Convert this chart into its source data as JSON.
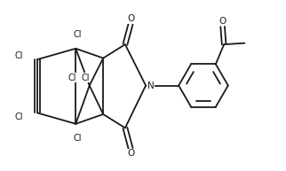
{
  "bg_color": "#ffffff",
  "line_color": "#1a1a1a",
  "line_width": 1.3,
  "label_color": "#1a1a1a",
  "font_size": 7.0,
  "fig_width": 3.22,
  "fig_height": 1.93,
  "dpi": 100,
  "xlim": [
    0,
    10
  ],
  "ylim": [
    0,
    6.2
  ]
}
